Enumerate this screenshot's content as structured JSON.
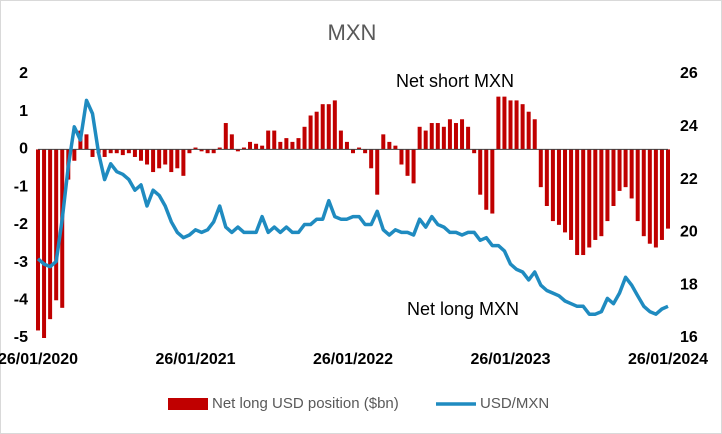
{
  "chart_data": {
    "type": "bar_line",
    "title": "MXN",
    "annotations": [
      "Net short MXN",
      "Net long MXN"
    ],
    "categories": [
      "26/01/2020",
      null,
      null,
      null,
      null,
      null,
      null,
      null,
      null,
      null,
      null,
      null,
      null,
      null,
      null,
      null,
      null,
      null,
      null,
      null,
      null,
      null,
      null,
      null,
      null,
      null,
      "26/01/2021",
      null,
      null,
      null,
      null,
      null,
      null,
      null,
      null,
      null,
      null,
      null,
      null,
      null,
      null,
      null,
      null,
      null,
      null,
      null,
      null,
      null,
      null,
      null,
      null,
      null,
      "26/01/2022",
      null,
      null,
      null,
      null,
      null,
      null,
      null,
      null,
      null,
      null,
      null,
      null,
      null,
      null,
      null,
      null,
      null,
      null,
      null,
      null,
      null,
      null,
      null,
      null,
      null,
      "26/01/2023",
      null,
      null,
      null,
      null,
      null,
      null,
      null,
      null,
      null,
      null,
      null,
      null,
      null,
      null,
      null,
      null,
      null,
      null,
      null,
      null,
      null,
      null,
      null,
      null,
      null,
      "26/01/2024"
    ],
    "series": [
      {
        "name": "Net long USD position ($bn)",
        "type": "bar",
        "color": "#c00000",
        "values": [
          -4.8,
          -5.0,
          -4.5,
          -4.0,
          -4.2,
          -0.8,
          -0.3,
          0.5,
          0.4,
          -0.2,
          -0.1,
          -0.2,
          -0.1,
          -0.1,
          -0.15,
          -0.1,
          -0.2,
          -0.3,
          -0.4,
          -0.6,
          -0.5,
          -0.4,
          -0.6,
          -0.5,
          -0.7,
          -0.1,
          0.05,
          -0.05,
          -0.1,
          -0.1,
          0.05,
          0.7,
          0.4,
          -0.05,
          0.05,
          0.2,
          0.15,
          0.1,
          0.5,
          0.5,
          0.2,
          0.3,
          0.2,
          0.3,
          0.6,
          0.9,
          1.0,
          1.2,
          1.2,
          1.3,
          0.5,
          0.2,
          -0.1,
          0.05,
          -0.1,
          -0.5,
          -1.2,
          0.4,
          0.2,
          0.1,
          -0.4,
          -0.7,
          -0.9,
          0.6,
          0.5,
          0.7,
          0.7,
          0.6,
          0.8,
          0.7,
          0.8,
          0.6,
          -0.1,
          -1.2,
          -1.6,
          -1.7,
          1.4,
          1.4,
          1.3,
          1.3,
          1.2,
          1.0,
          0.8,
          -1.0,
          -1.5,
          -1.9,
          -2.0,
          -2.2,
          -2.4,
          -2.8,
          -2.8,
          -2.6,
          -2.4,
          -2.3,
          -1.9,
          -1.5,
          -1.1,
          -1.0,
          -1.3,
          -1.9,
          -2.3,
          -2.5,
          -2.6,
          -2.4,
          -2.1
        ]
      },
      {
        "name": "USD/MXN",
        "type": "line",
        "axis": "y2",
        "color": "#1f8bc0",
        "values": [
          19.0,
          18.8,
          18.7,
          18.9,
          20.5,
          22.5,
          24.0,
          23.5,
          25.0,
          24.5,
          23.0,
          22.0,
          22.6,
          22.3,
          22.2,
          22.0,
          21.6,
          21.8,
          21.0,
          21.6,
          21.4,
          21.0,
          20.4,
          20.0,
          19.8,
          19.9,
          20.1,
          20.0,
          20.1,
          20.4,
          21.0,
          20.2,
          20.0,
          20.2,
          20.0,
          20.0,
          20.0,
          20.6,
          20.0,
          20.2,
          20.0,
          20.2,
          20.0,
          20.0,
          20.3,
          20.3,
          20.5,
          20.5,
          21.2,
          20.6,
          20.5,
          20.5,
          20.6,
          20.6,
          20.3,
          20.3,
          20.8,
          20.1,
          19.9,
          20.1,
          20.0,
          20.0,
          19.9,
          20.5,
          20.2,
          20.6,
          20.3,
          20.2,
          20.0,
          20.0,
          19.9,
          20.0,
          20.0,
          19.7,
          19.8,
          19.5,
          19.5,
          19.3,
          18.8,
          18.6,
          18.5,
          18.2,
          18.5,
          18.0,
          17.8,
          17.7,
          17.6,
          17.4,
          17.3,
          17.2,
          17.2,
          16.9,
          16.9,
          17.0,
          17.5,
          17.3,
          17.7,
          18.3,
          18.0,
          17.6,
          17.2,
          17.0,
          16.9,
          17.1,
          17.2
        ]
      }
    ],
    "ylim": [
      -5,
      2
    ],
    "yticks": [
      -5,
      -4,
      -3,
      -2,
      -1,
      0,
      1,
      2
    ],
    "y2lim": [
      16,
      26
    ],
    "y2ticks": [
      16,
      18,
      20,
      22,
      24,
      26
    ],
    "legend": "bottom",
    "grid": false
  }
}
